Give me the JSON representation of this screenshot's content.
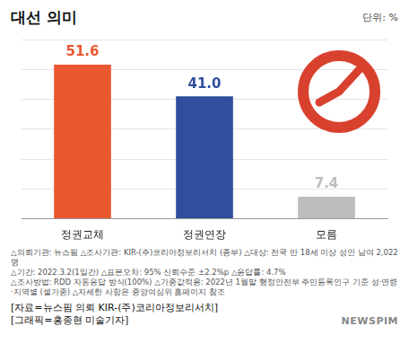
{
  "chart_data": {
    "type": "bar",
    "title": "대선 의미",
    "unit": "단위: %",
    "categories": [
      "정권교체",
      "정권연장",
      "모름"
    ],
    "values": [
      51.6,
      41.0,
      7.4
    ],
    "value_labels": [
      "51.6",
      "41.0",
      "7.4"
    ],
    "colors": [
      "#e9572f",
      "#2f4e9e",
      "#bdbdbd"
    ],
    "ylim": [
      0,
      60
    ],
    "yticks": [
      0,
      10,
      20,
      30,
      40,
      50,
      60
    ],
    "grid": true,
    "data_labels": true,
    "tick_labels": "x",
    "notes": [
      "△의뢰기관: 뉴스핌 △조사기관: KIR-(주)코리아정보리서치 (종부) △대상: 전국 만 18세 이상 성인 남여 2,022명",
      "△기간: 2022.3.2(1일간) △표본오차: 95% 신뢰수준 ±2.2%p △응답률: 4.7%",
      "△조사방법: RDD 자동응답 방식(100%) △가중값적용: 2022년 1월말 행정안전부 주민등록인구 기준 성·연령·지역별 (셀가중) △자세한 사항은 중앙여심위 홈페이지 참조"
    ],
    "credits": [
      "[자료=뉴스핌 의뢰 KIR-(주)코리아정보리서치]",
      "[그래픽=홍종현 미술기자]"
    ],
    "logo": "NEWSPIM"
  }
}
